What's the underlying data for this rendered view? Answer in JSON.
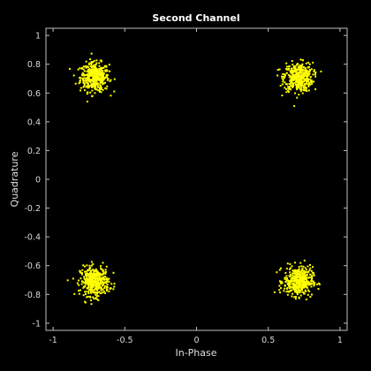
{
  "chart_data": {
    "type": "scatter",
    "title": "Second Channel",
    "xlabel": "In-Phase",
    "ylabel": "Quadrature",
    "xlim": [
      -1.05,
      1.05
    ],
    "ylim": [
      -1.05,
      1.05
    ],
    "x_ticks": [
      -1,
      -0.5,
      0,
      0.5,
      1
    ],
    "x_tick_labels": [
      "-1",
      "-0.5",
      "0",
      "0.5",
      "1"
    ],
    "y_ticks": [
      1,
      0.8,
      0.6,
      0.4,
      0.2,
      0,
      -0.2,
      -0.4,
      -0.6,
      -0.8,
      -1
    ],
    "y_tick_labels": [
      "1",
      "0.8",
      "0.6",
      "0.4",
      "0.2",
      "0",
      "-0.2",
      "-0.4",
      "-0.6",
      "-0.8",
      "-1"
    ],
    "grid": false,
    "background": "#000000",
    "axis_color": "#bfbfbf",
    "marker_color": "#ffff00",
    "series": [
      {
        "color": "#ffff00",
        "clusters": [
          {
            "center": [
              -0.71,
              0.71
            ],
            "spread": 0.05,
            "count": 420
          },
          {
            "center": [
              0.71,
              0.71
            ],
            "spread": 0.05,
            "count": 420
          },
          {
            "center": [
              -0.71,
              -0.71
            ],
            "spread": 0.05,
            "count": 420
          },
          {
            "center": [
              0.71,
              -0.71
            ],
            "spread": 0.05,
            "count": 420
          }
        ]
      }
    ]
  }
}
